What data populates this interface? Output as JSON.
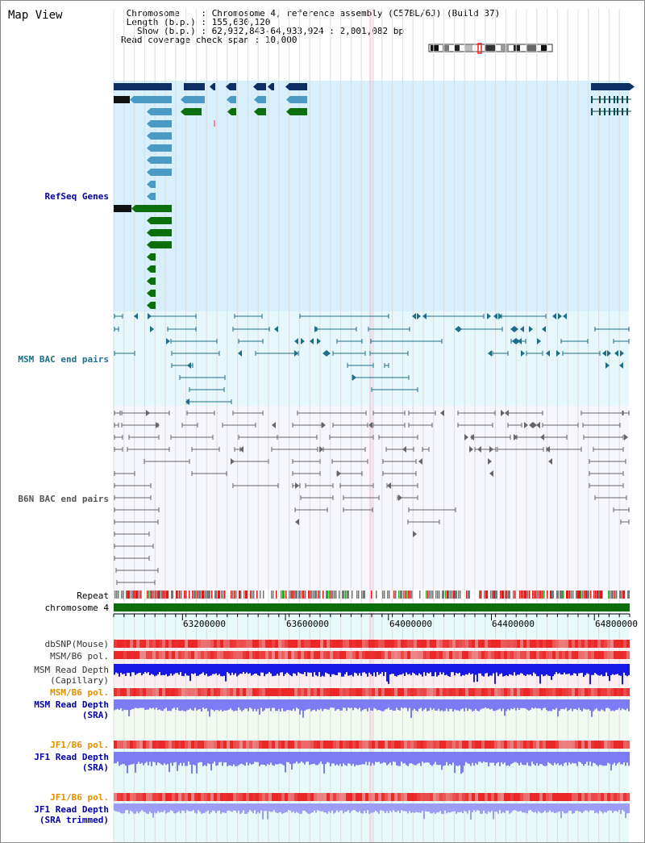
{
  "page": {
    "title": "Map View",
    "info_lines": [
      " Chromosome    : Chromosome 4, reference assembly (C57BL/6J) (Build 37)",
      " Length (b.p.) : 155,630,120",
      "   Show (b.p.) : 62,932,843-64,933,924 : 2,001,082 bp",
      "Read coverage check span : 10,000"
    ]
  },
  "colors": {
    "refseq_bg": "#d7f0fb",
    "msm_bg": "#e6f8fb",
    "b6n_bg": "#f6f6fd",
    "gene_navy": "#0d2f63",
    "gene_blue": "#4a9ac4",
    "gene_green": "#0d6e0d",
    "msm_pair": "#1d6e8a",
    "b6n_pair": "#666666",
    "chrom_green": "#0b6e0b",
    "read_depth_dark": "#1818e6",
    "read_depth_light": "#7c7cf4"
  },
  "tracks": {
    "refseq": "RefSeq Genes",
    "msm_bac": "MSM BAC end pairs",
    "b6n_bac": "B6N BAC end pairs",
    "repeat": "Repeat",
    "chromosome": "chromosome 4",
    "dbsnp": "dbSNP(Mouse)",
    "msm_b6_pol": "MSM/B6 pol.",
    "msm_depth_cap_1": "MSM Read Depth",
    "msm_depth_cap_2": "(Capillary)",
    "msm_b6_pol_sra": "MSM/B6 pol.",
    "msm_depth_sra_1": "MSM Read Depth",
    "msm_depth_sra_2": "(SRA)",
    "jf1_b6_pol": "JF1/B6 pol.",
    "jf1_depth_sra_1": "JF1 Read Depth",
    "jf1_depth_sra_2": "(SRA)",
    "jf1_b6_pol_2": "JF1/B6 pol.",
    "jf1_depth_trim_1": "JF1 Read Depth",
    "jf1_depth_trim_2": "(SRA trimmed)"
  },
  "axis": {
    "range_bp": [
      62932843,
      64933924
    ],
    "ticks": [
      {
        "value": 63200000,
        "label": "63200000"
      },
      {
        "value": 63600000,
        "label": "63600000"
      },
      {
        "value": 64000000,
        "label": "64000000"
      },
      {
        "value": 64400000,
        "label": "64400000"
      },
      {
        "value": 64800000,
        "label": "64800000"
      }
    ]
  }
}
